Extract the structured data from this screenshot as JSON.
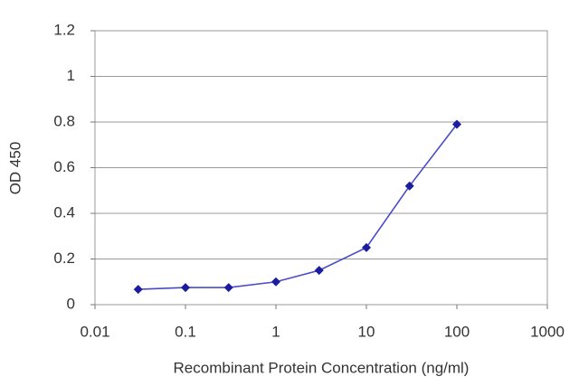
{
  "chart_data": {
    "type": "line",
    "xlabel": "Recombinant Protein Concentration (ng/ml)",
    "ylabel": "OD 450",
    "x": [
      0.03,
      0.1,
      0.3,
      1,
      3,
      10,
      30,
      100
    ],
    "values": [
      0.067,
      0.075,
      0.075,
      0.1,
      0.15,
      0.25,
      0.52,
      0.79
    ],
    "color": "#1c1ca0",
    "xlog": true,
    "xlim": [
      0.01,
      1000
    ],
    "xticks": [
      0.01,
      0.1,
      1,
      10,
      100,
      1000
    ],
    "ylim": [
      0,
      1.2
    ],
    "yticks": [
      0,
      0.2,
      0.4,
      0.6,
      0.8,
      1,
      1.2
    ],
    "grid": true
  }
}
